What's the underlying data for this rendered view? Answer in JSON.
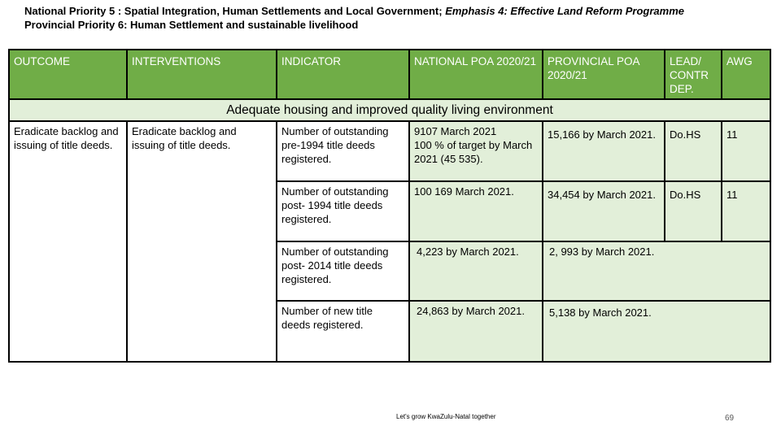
{
  "heading": {
    "line1_plain": "National Priority 5 : Spatial Integration, Human Settlements and Local Government; ",
    "line1_italic": "Emphasis 4: Effective Land Reform Programme",
    "line2": "Provincial Priority 6: Human Settlement and sustainable livelihood"
  },
  "table": {
    "headers": {
      "outcome": "OUTCOME",
      "interventions": "INTERVENTIONS",
      "indicator": "INDICATOR",
      "national_poa": "NATIONAL POA 2020/21",
      "provincial_poa": "PROVINCIAL POA 2020/21",
      "lead": "LEAD/ CONTR DEP.",
      "awg": "AWG"
    },
    "banner": "Adequate housing and improved quality living environment",
    "outcome": "Eradicate backlog and issuing of title deeds.",
    "intervention": "Eradicate backlog and issuing of title deeds.",
    "rows": [
      {
        "indicator": "Number of outstanding pre-1994 title deeds registered.",
        "national_line1": "9107 March 2021",
        "national_line2": "100 % of target by March 2021 (45 535).",
        "provincial": "15,166 by March 2021.",
        "lead": "Do.HS",
        "awg": "11"
      },
      {
        "indicator": "Number of outstanding post- 1994 title deeds registered.",
        "national": "100 169 March 2021.",
        "provincial": "34,454  by March 2021.",
        "lead": "Do.HS",
        "awg": "11"
      },
      {
        "indicator": "Number of outstanding post- 2014 title deeds registered.",
        "national": "4,223 by March 2021.",
        "provincial": "2, 993 by March 2021."
      },
      {
        "indicator": "Number of new title deeds registered.",
        "national": "24,863 by March 2021.",
        "provincial": "5,138 by March 2021."
      }
    ]
  },
  "footer": {
    "tagline": "Let's grow KwaZulu-Natal together",
    "page_number": "69"
  }
}
